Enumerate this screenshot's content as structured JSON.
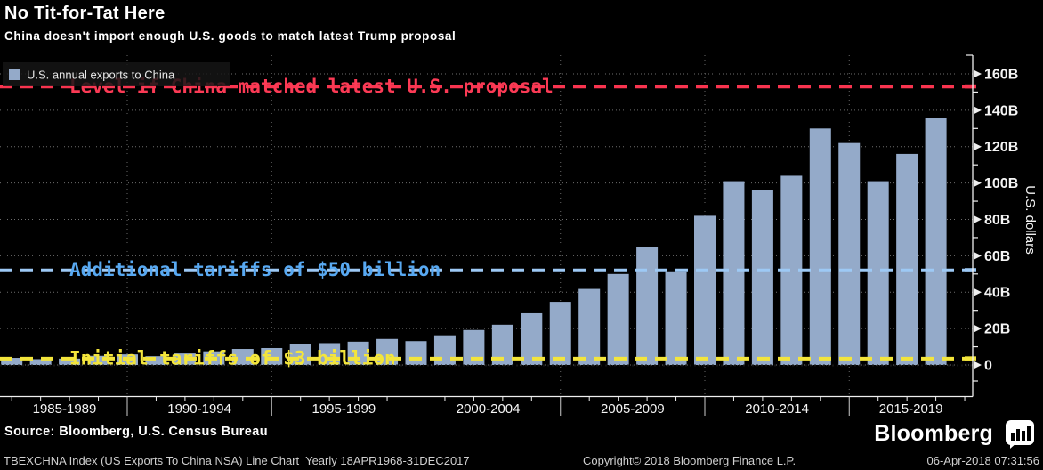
{
  "header": {
    "title": "No Tit-for-Tat Here",
    "subtitle": "China doesn't import enough U.S. goods to match latest Trump proposal"
  },
  "legend": {
    "label": "U.S. annual exports to China"
  },
  "colors": {
    "background": "#000000",
    "bar": "#94aac9",
    "red": "#f9344f",
    "red_text": "#fb3a55",
    "blue_line": "#9dc9f5",
    "blue_text": "#58a9f2",
    "yellow": "#f3e53c",
    "grid": "#6e6e6e",
    "vgrid": "#686868",
    "axis": "#f0f0f0",
    "label": "#f5f5f5"
  },
  "chart_data": {
    "type": "bar",
    "title": "No Tit-for-Tat Here",
    "subtitle": "China doesn't import enough U.S. goods to match latest Trump proposal",
    "series_name": "U.S. annual exports to China",
    "unit": "billions of U.S. dollars",
    "ylabel": "U.S. dollars",
    "ylim": [
      0,
      165
    ],
    "ytick_interval": 20,
    "ytick_labels": [
      "0",
      "20B",
      "40B",
      "60B",
      "80B",
      "100B",
      "120B",
      "140B",
      "160B"
    ],
    "x_group_labels": [
      "1985-1989",
      "1990-1994",
      "1995-1999",
      "2000-2004",
      "2005-2009",
      "2010-2014",
      "2015-2019"
    ],
    "years": [
      1985,
      1986,
      1987,
      1988,
      1989,
      1990,
      1991,
      1992,
      1993,
      1994,
      1995,
      1996,
      1997,
      1998,
      1999,
      2000,
      2001,
      2002,
      2003,
      2004,
      2005,
      2006,
      2007,
      2008,
      2009,
      2010,
      2011,
      2012,
      2013,
      2014,
      2015,
      2016,
      2017
    ],
    "values": [
      3.9,
      3.2,
      3.5,
      5.0,
      5.8,
      4.8,
      6.3,
      7.5,
      8.8,
      9.3,
      11.7,
      12.0,
      12.8,
      14.3,
      13.1,
      16.3,
      19.2,
      22.1,
      28.4,
      34.7,
      41.8,
      50,
      65,
      51,
      82,
      101,
      96,
      104,
      130,
      122,
      101,
      116,
      136
    ],
    "reference_lines": [
      {
        "label": "Level if China matched latest U.S. proposal",
        "value": 153,
        "color_key": "red"
      },
      {
        "label": "Additional tariffs of $50 billion",
        "value": 52,
        "color_key": "blue"
      },
      {
        "label": "Initial tariffs of $3 billion",
        "value": 3.5,
        "color_key": "yellow"
      }
    ],
    "grid": true,
    "legend_position": "top-left"
  },
  "footer": {
    "source": "Source: Bloomberg, U.S. Census Bureau",
    "brand": "Bloomberg"
  },
  "statusbar": {
    "left": "TBEXCHNA Index (US Exports To China NSA) Line Chart  Yearly 18APR1968-31DEC2017",
    "center": "Copyright© 2018 Bloomberg Finance L.P.",
    "right": "06-Apr-2018 07:31:56"
  }
}
